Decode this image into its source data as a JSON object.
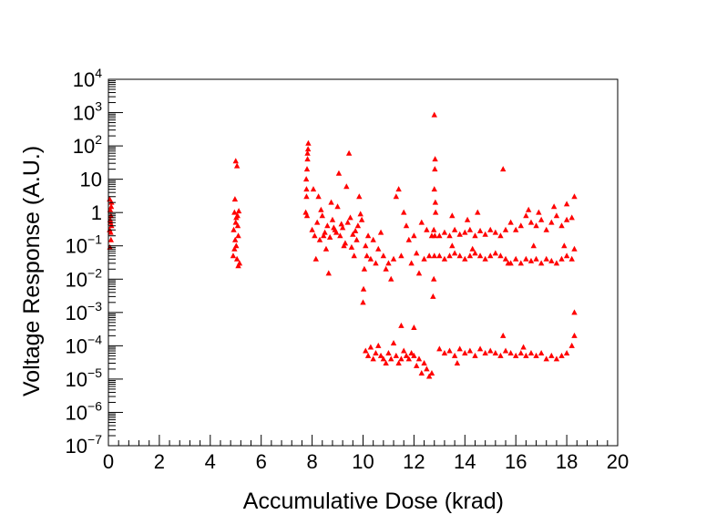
{
  "chart_data": {
    "type": "scatter",
    "title": "",
    "xlabel": "Accumulative Dose (krad)",
    "ylabel": "Voltage Response (A.U.)",
    "xlim": [
      0,
      20
    ],
    "ylim": [
      1e-07,
      10000.0
    ],
    "yscale": "log",
    "grid": false,
    "marker": "triangle",
    "x_ticks": [
      {
        "value": 0,
        "label": "0"
      },
      {
        "value": 2,
        "label": "2"
      },
      {
        "value": 4,
        "label": "4"
      },
      {
        "value": 6,
        "label": "6"
      },
      {
        "value": 8,
        "label": "8"
      },
      {
        "value": 10,
        "label": "10"
      },
      {
        "value": 12,
        "label": "12"
      },
      {
        "value": 14,
        "label": "14"
      },
      {
        "value": 16,
        "label": "16"
      },
      {
        "value": 18,
        "label": "18"
      },
      {
        "value": 20,
        "label": "20"
      }
    ],
    "y_ticks": [
      {
        "value": 1e-07,
        "base": "10",
        "exp": "−7",
        "plain": ""
      },
      {
        "value": 1e-06,
        "base": "10",
        "exp": "−6",
        "plain": ""
      },
      {
        "value": 1e-05,
        "base": "10",
        "exp": "−5",
        "plain": ""
      },
      {
        "value": 0.0001,
        "base": "10",
        "exp": "−4",
        "plain": ""
      },
      {
        "value": 0.001,
        "base": "10",
        "exp": "−3",
        "plain": ""
      },
      {
        "value": 0.01,
        "base": "10",
        "exp": "−2",
        "plain": ""
      },
      {
        "value": 0.1,
        "base": "10",
        "exp": "−1",
        "plain": ""
      },
      {
        "value": 1,
        "base": "",
        "exp": "",
        "plain": "1"
      },
      {
        "value": 10,
        "base": "",
        "exp": "",
        "plain": "10"
      },
      {
        "value": 100.0,
        "base": "10",
        "exp": "2",
        "plain": ""
      },
      {
        "value": 1000.0,
        "base": "10",
        "exp": "3",
        "plain": ""
      },
      {
        "value": 10000.0,
        "base": "10",
        "exp": "4",
        "plain": ""
      }
    ],
    "series": [
      {
        "name": "Voltage Response",
        "color": "#ff0000",
        "points": [
          [
            0.05,
            0.3
          ],
          [
            0.05,
            2.5
          ],
          [
            0.07,
            1.2
          ],
          [
            0.08,
            0.5
          ],
          [
            0.1,
            0.15
          ],
          [
            0.1,
            0.8
          ],
          [
            0.12,
            0.4
          ],
          [
            0.12,
            2.0
          ],
          [
            0.06,
            0.09
          ],
          [
            0.09,
            0.25
          ],
          [
            0.11,
            1.5
          ],
          [
            0.07,
            0.6
          ],
          [
            4.9,
            0.05
          ],
          [
            4.92,
            0.3
          ],
          [
            4.95,
            1.0
          ],
          [
            4.97,
            2.5
          ],
          [
            5.0,
            0.5
          ],
          [
            5.02,
            0.1
          ],
          [
            5.05,
            0.04
          ],
          [
            5.07,
            0.8
          ],
          [
            5.1,
            0.2
          ],
          [
            5.12,
            1.1
          ],
          [
            5.15,
            0.03
          ],
          [
            5.0,
            35
          ],
          [
            5.05,
            25
          ],
          [
            4.95,
            0.08
          ],
          [
            5.08,
            0.4
          ],
          [
            5.1,
            0.025
          ],
          [
            5.02,
            0.7
          ],
          [
            4.98,
            0.15
          ],
          [
            7.75,
            1
          ],
          [
            7.78,
            5
          ],
          [
            7.8,
            20
          ],
          [
            7.82,
            60
          ],
          [
            7.85,
            120
          ],
          [
            7.8,
            0.8
          ],
          [
            7.78,
            3
          ],
          [
            7.82,
            40
          ],
          [
            7.77,
            10
          ],
          [
            7.84,
            80
          ],
          [
            8.0,
            0.3
          ],
          [
            8.1,
            0.2
          ],
          [
            8.2,
            0.5
          ],
          [
            8.3,
            0.15
          ],
          [
            8.4,
            0.8
          ],
          [
            8.5,
            0.25
          ],
          [
            8.6,
            0.4
          ],
          [
            8.7,
            0.18
          ],
          [
            8.8,
            0.6
          ],
          [
            8.9,
            0.3
          ],
          [
            9.0,
            1.5
          ],
          [
            9.1,
            0.2
          ],
          [
            9.2,
            0.35
          ],
          [
            9.3,
            0.12
          ],
          [
            9.4,
            0.5
          ],
          [
            9.5,
            0.7
          ],
          [
            9.6,
            0.22
          ],
          [
            9.7,
            0.28
          ],
          [
            9.8,
            0.4
          ],
          [
            9.9,
            0.9
          ],
          [
            8.05,
            5
          ],
          [
            8.25,
            3
          ],
          [
            8.55,
            0.08
          ],
          [
            8.75,
            2
          ],
          [
            9.05,
            15
          ],
          [
            9.35,
            6
          ],
          [
            9.45,
            60
          ],
          [
            9.65,
            0.05
          ],
          [
            9.85,
            3
          ],
          [
            8.15,
            0.04
          ],
          [
            8.65,
            0.015
          ],
          [
            9.25,
            0.1
          ],
          [
            9.55,
            0.09
          ],
          [
            8.45,
            0.2
          ],
          [
            8.85,
            0.35
          ],
          [
            9.15,
            0.45
          ],
          [
            9.75,
            0.15
          ],
          [
            8.35,
            1.2
          ],
          [
            8.95,
            0.25
          ],
          [
            9.95,
            0.6
          ],
          [
            10.0,
            0.002
          ],
          [
            10.02,
            0.005
          ],
          [
            10.05,
            0.02
          ],
          [
            10.1,
            0.1
          ],
          [
            10.15,
            0.05
          ],
          [
            10.2,
            0.2
          ],
          [
            10.3,
            0.04
          ],
          [
            10.4,
            0.15
          ],
          [
            10.5,
            0.03
          ],
          [
            10.6,
            0.08
          ],
          [
            10.7,
            0.25
          ],
          [
            10.8,
            0.05
          ],
          [
            10.9,
            0.02
          ],
          [
            11.0,
            0.03
          ],
          [
            11.1,
            0.01
          ],
          [
            11.2,
            0.04
          ],
          [
            11.3,
            3
          ],
          [
            11.4,
            5
          ],
          [
            11.5,
            0.05
          ],
          [
            11.6,
            1
          ],
          [
            11.7,
            0.4
          ],
          [
            11.8,
            0.15
          ],
          [
            11.9,
            0.03
          ],
          [
            12.0,
            0.2
          ],
          [
            12.1,
            0.06
          ],
          [
            12.2,
            0.015
          ],
          [
            12.3,
            0.5
          ],
          [
            12.4,
            0.04
          ],
          [
            12.5,
            0.3
          ],
          [
            12.6,
            0.05
          ],
          [
            12.7,
            0.2
          ],
          [
            10.1,
            7e-05
          ],
          [
            10.2,
            5e-05
          ],
          [
            10.3,
            9e-05
          ],
          [
            10.4,
            4e-05
          ],
          [
            10.5,
            6e-05
          ],
          [
            10.6,
            0.0001
          ],
          [
            10.7,
            5e-05
          ],
          [
            10.8,
            4e-05
          ],
          [
            10.9,
            3e-05
          ],
          [
            11.0,
            6e-05
          ],
          [
            11.1,
            4e-05
          ],
          [
            11.2,
            0.00012
          ],
          [
            11.3,
            5e-05
          ],
          [
            11.4,
            3e-05
          ],
          [
            11.5,
            4e-05
          ],
          [
            11.6,
            7e-05
          ],
          [
            11.7,
            5e-05
          ],
          [
            11.8,
            4e-05
          ],
          [
            11.9,
            6e-05
          ],
          [
            12.0,
            5e-05
          ],
          [
            12.1,
            2.5e-05
          ],
          [
            12.2,
            4e-05
          ],
          [
            12.3,
            1.5e-05
          ],
          [
            12.4,
            3e-05
          ],
          [
            12.5,
            2e-05
          ],
          [
            12.6,
            1.2e-05
          ],
          [
            12.7,
            1.5e-05
          ],
          [
            11.5,
            0.0004
          ],
          [
            12.0,
            0.00035
          ],
          [
            12.75,
            0.003
          ],
          [
            12.78,
            0.01
          ],
          [
            12.8,
            0.05
          ],
          [
            12.82,
            0.2
          ],
          [
            12.85,
            1
          ],
          [
            12.8,
            5
          ],
          [
            12.82,
            20
          ],
          [
            12.83,
            40
          ],
          [
            12.8,
            850
          ],
          [
            12.78,
            0.3
          ],
          [
            12.84,
            2
          ],
          [
            13.0,
            0.2
          ],
          [
            13.2,
            0.25
          ],
          [
            13.4,
            0.2
          ],
          [
            13.6,
            0.3
          ],
          [
            13.8,
            0.22
          ],
          [
            14.0,
            0.25
          ],
          [
            14.2,
            0.3
          ],
          [
            14.4,
            0.2
          ],
          [
            14.6,
            0.28
          ],
          [
            14.8,
            0.22
          ],
          [
            15.0,
            0.3
          ],
          [
            15.2,
            0.25
          ],
          [
            15.4,
            0.2
          ],
          [
            15.6,
            0.3
          ],
          [
            15.8,
            0.5
          ],
          [
            16.0,
            0.3
          ],
          [
            16.2,
            0.4
          ],
          [
            16.4,
            0.8
          ],
          [
            16.6,
            0.5
          ],
          [
            16.8,
            0.4
          ],
          [
            17.0,
            0.6
          ],
          [
            17.2,
            0.3
          ],
          [
            17.4,
            0.5
          ],
          [
            17.6,
            0.8
          ],
          [
            17.8,
            0.4
          ],
          [
            18.0,
            0.6
          ],
          [
            18.2,
            0.7
          ],
          [
            18.3,
            3
          ],
          [
            13.5,
            0.8
          ],
          [
            14.5,
            1
          ],
          [
            15.5,
            20
          ],
          [
            16.5,
            1.2
          ],
          [
            17.5,
            1.5
          ],
          [
            18.0,
            1.8
          ],
          [
            14.1,
            0.6
          ],
          [
            16.9,
            1.0
          ],
          [
            13.0,
            0.05
          ],
          [
            13.2,
            0.04
          ],
          [
            13.4,
            0.05
          ],
          [
            13.6,
            0.06
          ],
          [
            13.8,
            0.05
          ],
          [
            14.0,
            0.04
          ],
          [
            14.2,
            0.05
          ],
          [
            14.4,
            0.06
          ],
          [
            14.6,
            0.05
          ],
          [
            14.8,
            0.04
          ],
          [
            15.0,
            0.05
          ],
          [
            15.2,
            0.06
          ],
          [
            15.4,
            0.05
          ],
          [
            15.6,
            0.04
          ],
          [
            15.8,
            0.03
          ],
          [
            16.0,
            0.04
          ],
          [
            16.2,
            0.03
          ],
          [
            16.4,
            0.04
          ],
          [
            16.6,
            0.035
          ],
          [
            16.8,
            0.04
          ],
          [
            17.0,
            0.03
          ],
          [
            17.2,
            0.04
          ],
          [
            17.4,
            0.035
          ],
          [
            17.6,
            0.03
          ],
          [
            17.8,
            0.04
          ],
          [
            18.0,
            0.05
          ],
          [
            18.2,
            0.04
          ],
          [
            18.3,
            0.08
          ],
          [
            13.5,
            0.1
          ],
          [
            14.3,
            0.08
          ],
          [
            15.7,
            0.03
          ],
          [
            16.7,
            0.1
          ],
          [
            17.9,
            0.1
          ],
          [
            13.0,
            8e-05
          ],
          [
            13.2,
            6e-05
          ],
          [
            13.4,
            7e-05
          ],
          [
            13.6,
            5e-05
          ],
          [
            13.8,
            8e-05
          ],
          [
            14.0,
            6e-05
          ],
          [
            14.2,
            7e-05
          ],
          [
            14.4,
            5e-05
          ],
          [
            14.6,
            8e-05
          ],
          [
            14.8,
            6e-05
          ],
          [
            15.0,
            7e-05
          ],
          [
            15.2,
            6e-05
          ],
          [
            15.4,
            5e-05
          ],
          [
            15.6,
            7e-05
          ],
          [
            15.8,
            6e-05
          ],
          [
            16.0,
            5e-05
          ],
          [
            16.2,
            6e-05
          ],
          [
            16.4,
            5e-05
          ],
          [
            16.6,
            6e-05
          ],
          [
            16.8,
            5e-05
          ],
          [
            17.0,
            6e-05
          ],
          [
            17.2,
            4e-05
          ],
          [
            17.4,
            5e-05
          ],
          [
            17.6,
            4e-05
          ],
          [
            17.8,
            5e-05
          ],
          [
            18.0,
            6e-05
          ],
          [
            18.2,
            0.0001
          ],
          [
            18.3,
            0.001
          ],
          [
            18.3,
            0.0002
          ],
          [
            15.5,
            0.0002
          ],
          [
            13.7,
            3e-05
          ],
          [
            16.3,
            9e-05
          ]
        ]
      }
    ]
  }
}
